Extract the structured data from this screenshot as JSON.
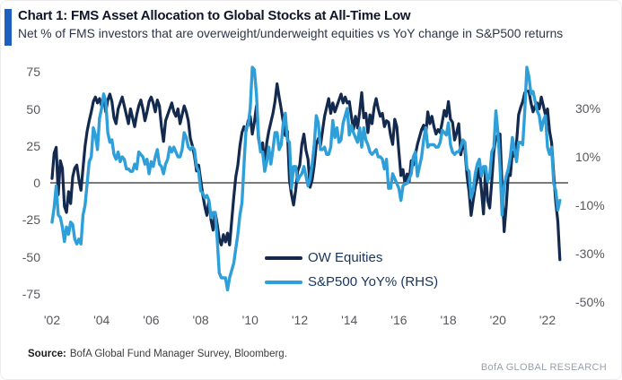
{
  "header": {
    "title": "Chart 1: FMS Asset Allocation to Global Stocks at All-Time Low",
    "subtitle": "Net % of FMS investors that are overweight/underweight equities vs YoY change in S&P500 returns"
  },
  "legend": {
    "items": [
      {
        "label": "OW Equities"
      },
      {
        "label": "S&P500 YoY% (RHS)"
      }
    ]
  },
  "footer": {
    "source_label": "Source:",
    "source_text": "BofA Global Fund Manager Survey, Bloomberg.",
    "watermark": "BofA GLOBAL RESEARCH"
  },
  "colors": {
    "accent_bar": "#1e5fbe",
    "ow_line": "#13294e",
    "sp_line": "#2e9fd9",
    "zero_line": "#7b7b7b",
    "axis_text": "#56585d"
  },
  "chart_data": {
    "type": "line",
    "title": "FMS Asset Allocation to Global Stocks at All-Time Low",
    "x_start_year": 2002,
    "x_interval": "monthly",
    "left_axis_range": [
      -75,
      75
    ],
    "right_axis_range_pct": [
      -50,
      30
    ],
    "grid": false,
    "legend_position": "inside-lower-center",
    "left_ticks": [
      {
        "label": "75",
        "v": 75
      },
      {
        "label": "50",
        "v": 50
      },
      {
        "label": "25",
        "v": 25
      },
      {
        "label": "0",
        "v": 0
      },
      {
        "label": "-25",
        "v": -25
      },
      {
        "label": "-50",
        "v": -50
      },
      {
        "label": "-75",
        "v": -75
      }
    ],
    "right_ticks": [
      {
        "label": "30%",
        "v": 30
      },
      {
        "label": "10%",
        "v": 10
      },
      {
        "label": "-10%",
        "v": -10
      },
      {
        "label": "-30%",
        "v": -30
      },
      {
        "label": "-50%",
        "v": -50
      }
    ],
    "x_ticks": [
      {
        "label": "'02",
        "year": 2002
      },
      {
        "label": "'04",
        "year": 2004
      },
      {
        "label": "'06",
        "year": 2006
      },
      {
        "label": "'08",
        "year": 2008
      },
      {
        "label": "'10",
        "year": 2010
      },
      {
        "label": "'12",
        "year": 2012
      },
      {
        "label": "'14",
        "year": 2014
      },
      {
        "label": "'16",
        "year": 2016
      },
      {
        "label": "'18",
        "year": 2018
      },
      {
        "label": "'20",
        "year": 2020
      },
      {
        "label": "'22",
        "year": 2022
      }
    ],
    "series": [
      {
        "name": "OW Equities",
        "axis": "left",
        "color": "#13294e",
        "values": [
          3,
          20,
          24,
          -8,
          15,
          10,
          -16,
          -20,
          -6,
          -14,
          4,
          10,
          12,
          2,
          -5,
          10,
          25,
          35,
          42,
          48,
          55,
          58,
          54,
          57,
          52,
          58,
          48,
          56,
          60,
          55,
          44,
          40,
          50,
          54,
          58,
          52,
          46,
          40,
          50,
          44,
          38,
          46,
          52,
          56,
          50,
          42,
          48,
          55,
          58,
          54,
          48,
          56,
          52,
          38,
          28,
          42,
          46,
          50,
          54,
          48,
          45,
          50,
          40,
          46,
          52,
          48,
          42,
          30,
          25,
          18,
          8,
          12,
          2,
          -8,
          -16,
          -22,
          -12,
          -25,
          -32,
          -20,
          -28,
          -38,
          -42,
          -35,
          -40,
          -34,
          -42,
          -26,
          -10,
          4,
          12,
          25,
          34,
          38,
          35,
          42,
          45,
          33,
          41,
          52,
          30,
          22,
          27,
          12,
          27,
          35,
          41,
          47,
          55,
          67,
          58,
          50,
          41,
          32,
          35,
          2,
          -8,
          -15,
          -5,
          8,
          12,
          26,
          33,
          22,
          16,
          -3,
          2,
          12,
          26,
          30,
          25,
          35,
          45,
          51,
          57,
          47,
          54,
          48,
          52,
          56,
          60,
          54,
          58,
          54,
          55,
          45,
          36,
          45,
          37,
          48,
          61,
          44,
          47,
          34,
          46,
          40,
          51,
          57,
          50,
          45,
          47,
          38,
          42,
          41,
          32,
          26,
          43,
          38,
          21,
          5,
          9,
          -1,
          6,
          1,
          15,
          12,
          19,
          26,
          31,
          36,
          39,
          32,
          48,
          40,
          45,
          38,
          33,
          36,
          34,
          41,
          49,
          45,
          55,
          43,
          41,
          29,
          34,
          40,
          19,
          27,
          22,
          5,
          -6,
          -22,
          -12,
          -3,
          3,
          10,
          -5,
          -21,
          10,
          -12,
          -17,
          1,
          21,
          31,
          32,
          33,
          -2,
          -33,
          -16,
          6,
          5,
          21,
          18,
          27,
          46,
          51,
          55,
          61,
          62,
          62,
          54,
          48,
          52,
          54,
          50,
          58,
          52,
          46,
          50,
          35,
          27,
          6,
          -13,
          -26,
          -52
        ]
      },
      {
        "name": "S&P500 YoY% (RHS)",
        "axis": "right",
        "color": "#2e9fd9",
        "values": [
          -17,
          -11,
          -2,
          -14,
          -15,
          -19,
          -25,
          -19,
          -22,
          -17,
          -18,
          -24,
          -26,
          -24,
          -26,
          -14,
          -10,
          -1,
          8,
          10,
          22,
          19,
          13,
          26,
          30,
          36,
          33,
          20,
          16,
          17,
          11,
          9,
          12,
          8,
          10,
          9,
          5,
          5,
          4,
          4,
          7,
          5,
          12,
          11,
          10,
          7,
          9,
          3,
          8,
          6,
          10,
          13,
          7,
          6,
          3,
          7,
          9,
          14,
          12,
          14,
          12,
          10,
          10,
          13,
          20,
          18,
          14,
          13,
          14,
          13,
          6,
          4,
          -4,
          -5,
          -7,
          -6,
          -8,
          -15,
          -13,
          -13,
          -24,
          -38,
          -40,
          -40,
          -40,
          -45,
          -40,
          -37,
          -34,
          -28,
          -22,
          -14,
          -9,
          7,
          22,
          23,
          30,
          47,
          46,
          36,
          19,
          12,
          12,
          4,
          8,
          14,
          7,
          13,
          20,
          20,
          13,
          15,
          24,
          28,
          17,
          16,
          -3,
          6,
          6,
          0,
          2,
          3,
          6,
          2,
          -2,
          1,
          7,
          15,
          27,
          24,
          13,
          13,
          14,
          11,
          11,
          14,
          25,
          18,
          22,
          16,
          17,
          24,
          27,
          30,
          19,
          23,
          20,
          18,
          16,
          22,
          14,
          22,
          17,
          15,
          12,
          11,
          12,
          13,
          10,
          10,
          9,
          5,
          9,
          -3,
          -3,
          3,
          1,
          -1,
          -3,
          -8,
          -2,
          -1,
          -1,
          1,
          3,
          10,
          12,
          2,
          6,
          10,
          17,
          22,
          14,
          15,
          15,
          15,
          14,
          14,
          16,
          21,
          20,
          19,
          24,
          15,
          12,
          11,
          12,
          12,
          14,
          17,
          16,
          5,
          4,
          -7,
          -4,
          3,
          7,
          9,
          2,
          6,
          6,
          0,
          2,
          12,
          14,
          29,
          20,
          6,
          -14,
          -2,
          2,
          5,
          10,
          18,
          13,
          8,
          16,
          16,
          15,
          29,
          47,
          43,
          36,
          37,
          33,
          29,
          27,
          21,
          25,
          27,
          14,
          11,
          14,
          -1,
          -4,
          -12,
          -8
        ]
      }
    ]
  }
}
